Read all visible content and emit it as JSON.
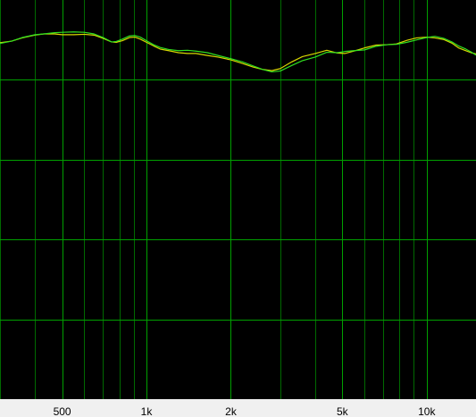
{
  "chart_data": {
    "type": "line",
    "title": "",
    "xlabel": "",
    "ylabel": "",
    "x_scale": "log",
    "xlim": [
      300,
      15000
    ],
    "ylim": [
      0,
      1
    ],
    "grid": true,
    "x_ticks": [
      {
        "value": 500,
        "label": "500"
      },
      {
        "value": 1000,
        "label": "1k"
      },
      {
        "value": 2000,
        "label": "2k"
      },
      {
        "value": 5000,
        "label": "5k"
      },
      {
        "value": 10000,
        "label": "10k"
      }
    ],
    "series": [
      {
        "color": "#d8d800",
        "points": [
          [
            300,
            0.893
          ],
          [
            330,
            0.897
          ],
          [
            360,
            0.905
          ],
          [
            400,
            0.912
          ],
          [
            430,
            0.915
          ],
          [
            470,
            0.915
          ],
          [
            500,
            0.913
          ],
          [
            550,
            0.913
          ],
          [
            600,
            0.914
          ],
          [
            650,
            0.912
          ],
          [
            700,
            0.904
          ],
          [
            750,
            0.895
          ],
          [
            780,
            0.894
          ],
          [
            820,
            0.898
          ],
          [
            870,
            0.906
          ],
          [
            910,
            0.907
          ],
          [
            950,
            0.902
          ],
          [
            1000,
            0.894
          ],
          [
            1060,
            0.885
          ],
          [
            1120,
            0.877
          ],
          [
            1200,
            0.873
          ],
          [
            1300,
            0.868
          ],
          [
            1400,
            0.866
          ],
          [
            1500,
            0.866
          ],
          [
            1650,
            0.861
          ],
          [
            1800,
            0.857
          ],
          [
            2000,
            0.85
          ],
          [
            2200,
            0.841
          ],
          [
            2400,
            0.832
          ],
          [
            2600,
            0.826
          ],
          [
            2800,
            0.823
          ],
          [
            3000,
            0.828
          ],
          [
            3300,
            0.845
          ],
          [
            3600,
            0.858
          ],
          [
            4000,
            0.866
          ],
          [
            4400,
            0.874
          ],
          [
            4800,
            0.867
          ],
          [
            5100,
            0.866
          ],
          [
            5500,
            0.872
          ],
          [
            6000,
            0.88
          ],
          [
            6600,
            0.887
          ],
          [
            7200,
            0.888
          ],
          [
            7800,
            0.89
          ],
          [
            8500,
            0.899
          ],
          [
            9200,
            0.905
          ],
          [
            10000,
            0.907
          ],
          [
            10700,
            0.905
          ],
          [
            11500,
            0.901
          ],
          [
            12300,
            0.892
          ],
          [
            13000,
            0.88
          ],
          [
            13800,
            0.873
          ],
          [
            14400,
            0.868
          ],
          [
            15000,
            0.865
          ]
        ]
      },
      {
        "color": "#30e020",
        "points": [
          [
            300,
            0.891
          ],
          [
            330,
            0.897
          ],
          [
            360,
            0.906
          ],
          [
            400,
            0.913
          ],
          [
            430,
            0.915
          ],
          [
            470,
            0.918
          ],
          [
            500,
            0.919
          ],
          [
            550,
            0.92
          ],
          [
            600,
            0.919
          ],
          [
            650,
            0.915
          ],
          [
            700,
            0.906
          ],
          [
            750,
            0.895
          ],
          [
            780,
            0.896
          ],
          [
            820,
            0.902
          ],
          [
            870,
            0.91
          ],
          [
            910,
            0.911
          ],
          [
            950,
            0.907
          ],
          [
            1000,
            0.898
          ],
          [
            1060,
            0.888
          ],
          [
            1120,
            0.881
          ],
          [
            1200,
            0.876
          ],
          [
            1300,
            0.873
          ],
          [
            1400,
            0.874
          ],
          [
            1500,
            0.872
          ],
          [
            1650,
            0.868
          ],
          [
            1800,
            0.861
          ],
          [
            2000,
            0.853
          ],
          [
            2200,
            0.845
          ],
          [
            2400,
            0.835
          ],
          [
            2600,
            0.826
          ],
          [
            2800,
            0.82
          ],
          [
            3000,
            0.822
          ],
          [
            3300,
            0.836
          ],
          [
            3600,
            0.848
          ],
          [
            4000,
            0.857
          ],
          [
            4400,
            0.869
          ],
          [
            4800,
            0.868
          ],
          [
            5100,
            0.871
          ],
          [
            5500,
            0.873
          ],
          [
            6000,
            0.875
          ],
          [
            6600,
            0.884
          ],
          [
            7200,
            0.888
          ],
          [
            7800,
            0.889
          ],
          [
            8500,
            0.894
          ],
          [
            9200,
            0.9
          ],
          [
            10000,
            0.906
          ],
          [
            10700,
            0.909
          ],
          [
            11500,
            0.904
          ],
          [
            12300,
            0.895
          ],
          [
            13000,
            0.885
          ],
          [
            13800,
            0.877
          ],
          [
            14400,
            0.87
          ],
          [
            15000,
            0.862
          ]
        ]
      }
    ]
  }
}
